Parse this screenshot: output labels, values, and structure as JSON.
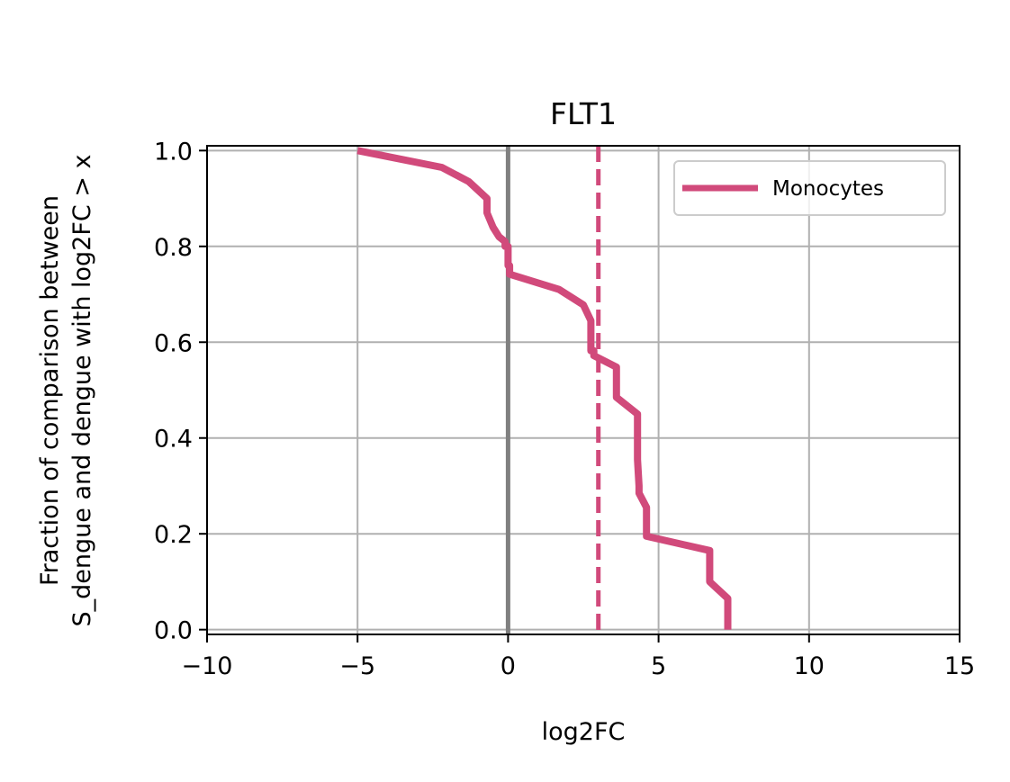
{
  "chart_data": {
    "type": "line",
    "title": "FLT1",
    "xlabel": "log2FC",
    "ylabel_lines": [
      "Fraction of comparison between",
      "S_dengue and dengue with log2FC > x"
    ],
    "xlim": [
      -10,
      15
    ],
    "ylim": [
      -0.01,
      1.01
    ],
    "xticks": [
      -10,
      -5,
      0,
      5,
      10,
      15
    ],
    "xtick_labels": [
      "−10",
      "−5",
      "0",
      "5",
      "10",
      "15"
    ],
    "yticks": [
      0.0,
      0.2,
      0.4,
      0.6,
      0.8,
      1.0
    ],
    "ytick_labels": [
      "0.0",
      "0.2",
      "0.4",
      "0.6",
      "0.8",
      "1.0"
    ],
    "grid": true,
    "legend_position": "upper-right",
    "vlines": [
      {
        "x": 0,
        "color": "#808080",
        "style": "solid"
      },
      {
        "x": 3,
        "color": "#d14a7b",
        "style": "dashed"
      }
    ],
    "series": [
      {
        "name": "Monocytes",
        "color": "#d14a7b",
        "x": [
          -5.0,
          -2.2,
          -1.3,
          -0.7,
          -0.7,
          -0.5,
          -0.3,
          -0.1,
          -0.1,
          0.0,
          0.0,
          0.05,
          0.05,
          1.7,
          2.5,
          2.75,
          2.75,
          2.85,
          2.85,
          3.6,
          3.6,
          4.3,
          4.3,
          4.35,
          4.35,
          4.6,
          4.6,
          6.7,
          6.7,
          7.3,
          7.3
        ],
        "y": [
          1.0,
          0.965,
          0.935,
          0.9,
          0.87,
          0.84,
          0.82,
          0.81,
          0.8,
          0.8,
          0.76,
          0.76,
          0.742,
          0.71,
          0.678,
          0.645,
          0.582,
          0.582,
          0.572,
          0.548,
          0.485,
          0.45,
          0.355,
          0.3,
          0.285,
          0.255,
          0.195,
          0.165,
          0.1,
          0.065,
          0.0
        ]
      }
    ]
  }
}
